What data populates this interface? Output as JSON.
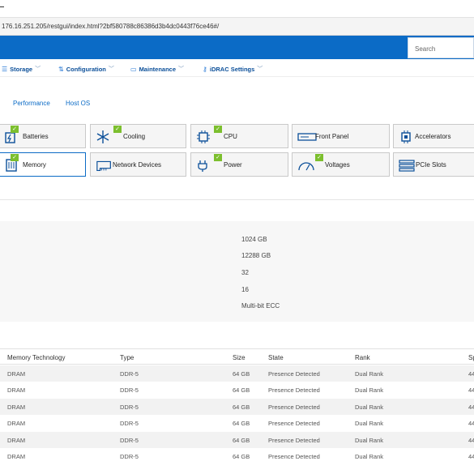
{
  "browser": {
    "url": "176.16.251.205/restgui/index.html?2bf580788c86386d3b4dc0443f76ce46#/"
  },
  "header": {
    "search_placeholder": "Search"
  },
  "nav": [
    {
      "label": "Storage",
      "icon": "storage-icon"
    },
    {
      "label": "Configuration",
      "icon": "configuration-icon"
    },
    {
      "label": "Maintenance",
      "icon": "maintenance-icon"
    },
    {
      "label": "iDRAC Settings",
      "icon": "key-icon"
    }
  ],
  "subtabs": [
    "Performance",
    "Host OS"
  ],
  "components": [
    {
      "label": "Batteries",
      "icon": "battery-icon",
      "status": "ok",
      "selected": false
    },
    {
      "label": "Cooling",
      "icon": "cooling-icon",
      "status": "ok",
      "selected": false
    },
    {
      "label": "CPU",
      "icon": "cpu-icon",
      "status": "ok",
      "selected": false
    },
    {
      "label": "Front Panel",
      "icon": "front-panel-icon",
      "status": "none",
      "selected": false
    },
    {
      "label": "Accelerators",
      "icon": "accelerator-icon",
      "status": "none",
      "selected": false
    },
    {
      "label": "Memory",
      "icon": "memory-icon",
      "status": "ok",
      "selected": true
    },
    {
      "label": "Network Devices",
      "icon": "network-card-icon",
      "status": "none",
      "selected": false
    },
    {
      "label": "Power",
      "icon": "power-plug-icon",
      "status": "ok",
      "selected": false
    },
    {
      "label": "Voltages",
      "icon": "gauge-icon",
      "status": "ok",
      "selected": false
    },
    {
      "label": "PCIe Slots",
      "icon": "pcie-slot-icon",
      "status": "none",
      "selected": false
    }
  ],
  "summary_values": [
    "1024 GB",
    "12288 GB",
    "32",
    "16",
    "Multi-bit ECC"
  ],
  "table": {
    "columns": [
      "Memory Technology",
      "Type",
      "Size",
      "State",
      "Rank",
      "Sp"
    ],
    "rows": [
      [
        "DRAM",
        "DDR-5",
        "64 GB",
        "Presence Detected",
        "Dual Rank",
        "44"
      ],
      [
        "DRAM",
        "DDR-5",
        "64 GB",
        "Presence Detected",
        "Dual Rank",
        "44"
      ],
      [
        "DRAM",
        "DDR-5",
        "64 GB",
        "Presence Detected",
        "Dual Rank",
        "44"
      ],
      [
        "DRAM",
        "DDR-5",
        "64 GB",
        "Presence Detected",
        "Dual Rank",
        "44"
      ],
      [
        "DRAM",
        "DDR-5",
        "64 GB",
        "Presence Detected",
        "Dual Rank",
        "44"
      ],
      [
        "DRAM",
        "DDR-5",
        "64 GB",
        "Presence Detected",
        "Dual Rank",
        "44"
      ]
    ]
  },
  "colors": {
    "banner": "#0b6bc6",
    "link": "#0b6bc6",
    "status_ok": "#7cbf2e"
  }
}
